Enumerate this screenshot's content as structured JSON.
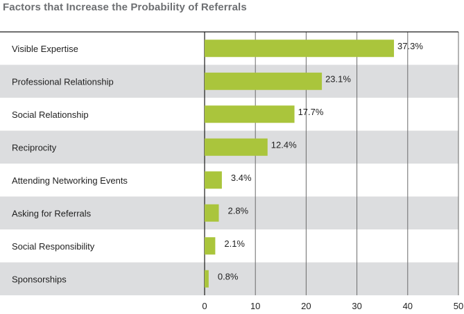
{
  "chart_data": {
    "type": "bar",
    "orientation": "horizontal",
    "title": "Factors that Increase the Probability of Referrals",
    "categories": [
      "Visible Expertise",
      "Professional Relationship",
      "Social Relationship",
      "Reciprocity",
      "Attending Networking Events",
      "Asking for Referrals",
      "Social Responsibility",
      "Sponsorships"
    ],
    "values": [
      37.3,
      23.1,
      17.7,
      12.4,
      3.4,
      2.8,
      2.1,
      0.8
    ],
    "data_labels": [
      "37.3%",
      "23.1%",
      "17.7%",
      "12.4%",
      "3.4%",
      "2.8%",
      "2.1%",
      "0.8%"
    ],
    "xlim": [
      0,
      50
    ],
    "xticks": [
      0,
      10,
      20,
      30,
      40,
      50
    ],
    "xlabel": "",
    "ylabel": "",
    "grid": true,
    "legend": "none",
    "colors": {
      "bar": "#aac53c",
      "band": "#dcdddf",
      "grid": "#6a6a6a",
      "title": "#6d6f72"
    }
  }
}
